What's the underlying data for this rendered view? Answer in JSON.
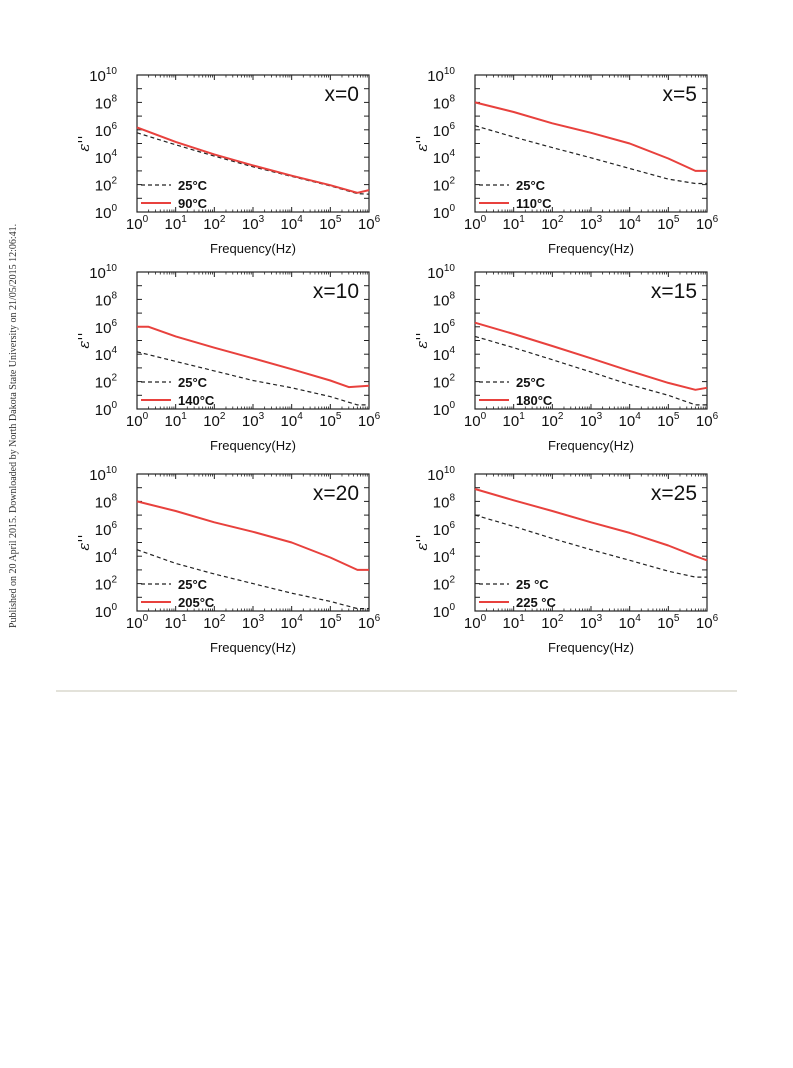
{
  "page": {
    "side_note": "Published on 20 April 2015. Downloaded by North Dakota State University on 21/05/2015 12:06:41."
  },
  "colors": {
    "hot": "#e8413d",
    "room": "#222222"
  },
  "chart_data": [
    {
      "type": "line",
      "title": "x=0",
      "xlabel": "Frequency(Hz)",
      "ylabel": "ε''",
      "xscale": "log",
      "yscale": "log",
      "xlim": [
        1,
        1000000
      ],
      "ylim": [
        1,
        10000000000
      ],
      "legend_position": "bottom-left",
      "series": [
        {
          "name": "25°C",
          "style": "dashed",
          "x": [
            1,
            10,
            100,
            1000,
            10000,
            100000,
            500000,
            1000000
          ],
          "y": [
            600000,
            80000,
            12000,
            2000,
            400,
            80,
            22,
            20
          ]
        },
        {
          "name": "90°C",
          "style": "solid",
          "x": [
            1,
            10,
            100,
            1000,
            10000,
            100000,
            500000,
            1000000
          ],
          "y": [
            1500000,
            130000,
            16000,
            2500,
            450,
            90,
            25,
            40
          ]
        }
      ]
    },
    {
      "type": "line",
      "title": "x=5",
      "xlabel": "Frequency(Hz)",
      "ylabel": "ε''",
      "xscale": "log",
      "yscale": "log",
      "xlim": [
        1,
        1000000
      ],
      "ylim": [
        1,
        10000000000
      ],
      "legend_position": "bottom-left",
      "series": [
        {
          "name": "25°C",
          "style": "dashed",
          "x": [
            1,
            10,
            100,
            1000,
            10000,
            100000,
            500000,
            1000000
          ],
          "y": [
            2000000,
            300000,
            50000,
            9000,
            1500,
            250,
            120,
            120
          ]
        },
        {
          "name": "110°C",
          "style": "solid",
          "x": [
            1,
            10,
            100,
            1000,
            10000,
            100000,
            500000,
            1000000
          ],
          "y": [
            100000000,
            20000000,
            3000000,
            600000,
            100000,
            8000,
            1000,
            1000
          ]
        }
      ]
    },
    {
      "type": "line",
      "title": "x=10",
      "xlabel": "Frequency(Hz)",
      "ylabel": "ε''",
      "xscale": "log",
      "yscale": "log",
      "xlim": [
        1,
        1000000
      ],
      "ylim": [
        1,
        10000000000
      ],
      "legend_position": "bottom-left",
      "series": [
        {
          "name": "25°C",
          "style": "dashed",
          "x": [
            1,
            10,
            100,
            1000,
            10000,
            100000,
            500000,
            1000000
          ],
          "y": [
            15000,
            3000,
            600,
            120,
            35,
            8,
            2,
            2
          ]
        },
        {
          "name": "140°C",
          "style": "solid",
          "x": [
            1,
            2,
            10,
            100,
            1000,
            10000,
            100000,
            300000,
            1000000
          ],
          "y": [
            1000000,
            1000000,
            200000,
            30000,
            5000,
            800,
            120,
            40,
            50
          ]
        }
      ]
    },
    {
      "type": "line",
      "title": "x=15",
      "xlabel": "Frequency(Hz)",
      "ylabel": "ε''",
      "xscale": "log",
      "yscale": "log",
      "xlim": [
        1,
        1000000
      ],
      "ylim": [
        1,
        10000000000
      ],
      "legend_position": "bottom-left",
      "series": [
        {
          "name": "25°C",
          "style": "dashed",
          "x": [
            1,
            10,
            100,
            1000,
            10000,
            100000,
            500000,
            1000000
          ],
          "y": [
            200000,
            30000,
            4000,
            500,
            60,
            10,
            2,
            2
          ]
        },
        {
          "name": "180°C",
          "style": "solid",
          "x": [
            1,
            10,
            100,
            1000,
            10000,
            100000,
            500000,
            1000000
          ],
          "y": [
            2000000,
            300000,
            40000,
            5000,
            600,
            80,
            25,
            35
          ]
        }
      ]
    },
    {
      "type": "line",
      "title": "x=20",
      "xlabel": "Frequency(Hz)",
      "ylabel": "ε''",
      "xscale": "log",
      "yscale": "log",
      "xlim": [
        1,
        1000000
      ],
      "ylim": [
        1,
        10000000000
      ],
      "legend_position": "bottom-left",
      "series": [
        {
          "name": "25°C",
          "style": "dashed",
          "x": [
            1,
            10,
            100,
            1000,
            10000,
            100000,
            500000,
            1000000
          ],
          "y": [
            30000,
            3000,
            500,
            100,
            20,
            5,
            1.5,
            1.5
          ]
        },
        {
          "name": "205°C",
          "style": "solid",
          "x": [
            1,
            10,
            100,
            1000,
            10000,
            100000,
            500000,
            1000000
          ],
          "y": [
            100000000,
            20000000,
            3000000,
            600000,
            100000,
            8000,
            1000,
            1000
          ]
        }
      ]
    },
    {
      "type": "line",
      "title": "x=25",
      "xlabel": "Frequency(Hz)",
      "ylabel": "ε''",
      "xscale": "log",
      "yscale": "log",
      "xlim": [
        1,
        1000000
      ],
      "ylim": [
        1,
        10000000000
      ],
      "legend_position": "bottom-left",
      "series": [
        {
          "name": "25 °C",
          "style": "dashed",
          "x": [
            1,
            10,
            100,
            1000,
            10000,
            100000,
            500000,
            1000000
          ],
          "y": [
            10000000,
            1500000,
            200000,
            30000,
            5000,
            800,
            300,
            300
          ]
        },
        {
          "name": "225 °C",
          "style": "solid",
          "x": [
            1,
            10,
            100,
            1000,
            10000,
            100000,
            500000,
            1000000
          ],
          "y": [
            800000000,
            120000000,
            20000000,
            3000000,
            500000,
            60000,
            10000,
            5000
          ]
        }
      ]
    }
  ]
}
